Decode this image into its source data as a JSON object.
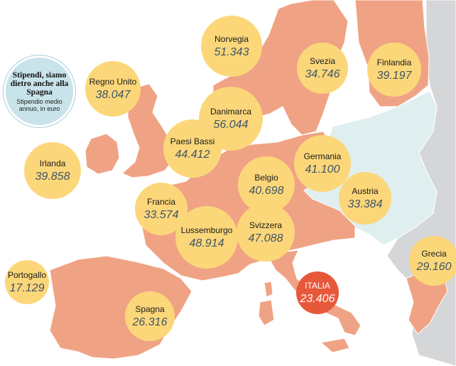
{
  "legend": {
    "title": "Stipendi, siamo dietro anche alla Spagna",
    "subtitle": "Stipendio medio annuo, in euro"
  },
  "colors": {
    "sea": "#ffffff",
    "highlighted_land": "#f0a384",
    "other_land": "#dfeff0",
    "outside_land": "#d5d6d8",
    "bubble": "#fcd77a",
    "bubble_highlight": "#e7583b",
    "value_text": "#3f5566"
  },
  "countries": [
    {
      "name": "Norvegia",
      "value": "51.343",
      "highlight": false
    },
    {
      "name": "Svezia",
      "value": "34.746",
      "highlight": false
    },
    {
      "name": "Finlandia",
      "value": "39.197",
      "highlight": false
    },
    {
      "name": "Regno Unito",
      "value": "38.047",
      "highlight": false
    },
    {
      "name": "Danimarca",
      "value": "56.044",
      "highlight": false
    },
    {
      "name": "Paesi Bassi",
      "value": "44.412",
      "highlight": false
    },
    {
      "name": "Germania",
      "value": "41.100",
      "highlight": false
    },
    {
      "name": "Irlanda",
      "value": "39.858",
      "highlight": false
    },
    {
      "name": "Belgio",
      "value": "40.698",
      "highlight": false
    },
    {
      "name": "Austria",
      "value": "33.384",
      "highlight": false
    },
    {
      "name": "Francia",
      "value": "33.574",
      "highlight": false
    },
    {
      "name": "Lussemburgo",
      "value": "48.914",
      "highlight": false
    },
    {
      "name": "Svizzera",
      "value": "47.088",
      "highlight": false
    },
    {
      "name": "Grecia",
      "value": "29.160",
      "highlight": false
    },
    {
      "name": "Portogallo",
      "value": "17.129",
      "highlight": false
    },
    {
      "name": "ITALIA",
      "value": "23.406",
      "highlight": true
    },
    {
      "name": "Spagna",
      "value": "26.316",
      "highlight": false
    }
  ]
}
